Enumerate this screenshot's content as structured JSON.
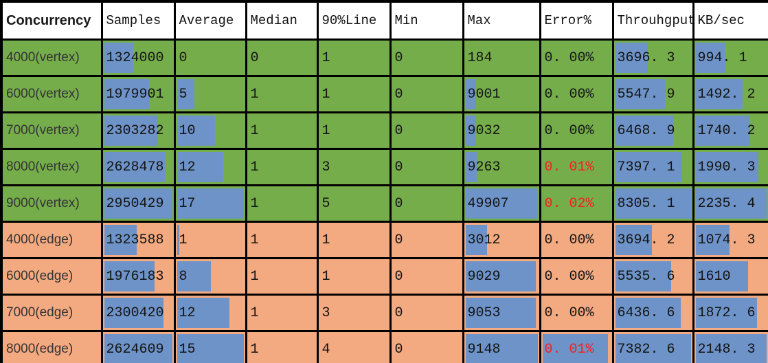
{
  "colors": {
    "green": "#76ad4b",
    "orange": "#f4aa80",
    "blue": "#6d93c8",
    "red": "#ee2222",
    "headerBg": "#ffffff",
    "border": "#000000"
  },
  "header": {
    "columns": [
      "Concurrency",
      "Samples",
      "Average",
      "Median",
      "90%Line",
      "Min",
      "Max",
      "Error%",
      "Throuhgput",
      "KB/sec"
    ]
  },
  "rows": [
    {
      "label": "4000(vertex)",
      "group": "vertex",
      "cells": [
        {
          "v": "1324000",
          "bar": 0.45
        },
        {
          "v": "0",
          "bar": 0
        },
        {
          "v": "0",
          "bar": 0
        },
        {
          "v": "1",
          "bar": 0
        },
        {
          "v": "0",
          "bar": 0
        },
        {
          "v": "184",
          "bar": 0
        },
        {
          "v": "0. 00%",
          "bar": 0,
          "red": false
        },
        {
          "v": "3696. 3",
          "bar": 0.45
        },
        {
          "v": "994. 1",
          "bar": 0.44
        }
      ]
    },
    {
      "label": "6000(vertex)",
      "group": "vertex",
      "cells": [
        {
          "v": "1979901",
          "bar": 0.67
        },
        {
          "v": "5",
          "bar": 0.29
        },
        {
          "v": "1",
          "bar": 0
        },
        {
          "v": "1",
          "bar": 0
        },
        {
          "v": "0",
          "bar": 0
        },
        {
          "v": "9001",
          "bar": 0.18
        },
        {
          "v": "0. 00%",
          "bar": 0,
          "red": false
        },
        {
          "v": "5547. 9",
          "bar": 0.67
        },
        {
          "v": "1492. 2",
          "bar": 0.67
        }
      ]
    },
    {
      "label": "7000(vertex)",
      "group": "vertex",
      "cells": [
        {
          "v": "2303282",
          "bar": 0.79
        },
        {
          "v": "10",
          "bar": 0.59
        },
        {
          "v": "1",
          "bar": 0
        },
        {
          "v": "1",
          "bar": 0
        },
        {
          "v": "0",
          "bar": 0
        },
        {
          "v": "9032",
          "bar": 0.18
        },
        {
          "v": "0. 00%",
          "bar": 0,
          "red": false
        },
        {
          "v": "6468. 9",
          "bar": 0.78
        },
        {
          "v": "1740. 2",
          "bar": 0.78
        }
      ]
    },
    {
      "label": "8000(vertex)",
      "group": "vertex",
      "cells": [
        {
          "v": "2628478",
          "bar": 0.9
        },
        {
          "v": "12",
          "bar": 0.71
        },
        {
          "v": "1",
          "bar": 0
        },
        {
          "v": "3",
          "bar": 0
        },
        {
          "v": "0",
          "bar": 0
        },
        {
          "v": "9263",
          "bar": 0.19
        },
        {
          "v": "0. 01%",
          "bar": 0,
          "red": true
        },
        {
          "v": "7397. 1",
          "bar": 0.89
        },
        {
          "v": "1990. 3",
          "bar": 0.89
        }
      ]
    },
    {
      "label": "9000(vertex)",
      "group": "vertex",
      "cells": [
        {
          "v": "2950429",
          "bar": 1
        },
        {
          "v": "17",
          "bar": 1
        },
        {
          "v": "1",
          "bar": 0
        },
        {
          "v": "5",
          "bar": 0
        },
        {
          "v": "0",
          "bar": 0
        },
        {
          "v": "49907",
          "bar": 1
        },
        {
          "v": "0. 02%",
          "bar": 0,
          "red": true
        },
        {
          "v": "8305. 1",
          "bar": 1
        },
        {
          "v": "2235. 4",
          "bar": 1
        }
      ]
    },
    {
      "label": "4000(edge)",
      "group": "edge",
      "cells": [
        {
          "v": "1323588",
          "bar": 0.5
        },
        {
          "v": "1",
          "bar": 0.07
        },
        {
          "v": "1",
          "bar": 0
        },
        {
          "v": "1",
          "bar": 0
        },
        {
          "v": "0",
          "bar": 0
        },
        {
          "v": "3012",
          "bar": 0.33
        },
        {
          "v": "0. 00%",
          "bar": 0,
          "red": false
        },
        {
          "v": "3694. 2",
          "bar": 0.5
        },
        {
          "v": "1074. 3",
          "bar": 0.5
        }
      ]
    },
    {
      "label": "6000(edge)",
      "group": "edge",
      "cells": [
        {
          "v": "1976183",
          "bar": 0.75
        },
        {
          "v": "8",
          "bar": 0.53
        },
        {
          "v": "1",
          "bar": 0
        },
        {
          "v": "1",
          "bar": 0
        },
        {
          "v": "0",
          "bar": 0
        },
        {
          "v": "9029",
          "bar": 0.98
        },
        {
          "v": "0. 00%",
          "bar": 0,
          "red": false
        },
        {
          "v": "5535. 6",
          "bar": 0.75
        },
        {
          "v": "1610",
          "bar": 0.75
        }
      ]
    },
    {
      "label": "7000(edge)",
      "group": "edge",
      "cells": [
        {
          "v": "2300420",
          "bar": 0.88
        },
        {
          "v": "12",
          "bar": 0.8
        },
        {
          "v": "1",
          "bar": 0
        },
        {
          "v": "3",
          "bar": 0
        },
        {
          "v": "0",
          "bar": 0
        },
        {
          "v": "9053",
          "bar": 0.98
        },
        {
          "v": "0. 00%",
          "bar": 0,
          "red": false
        },
        {
          "v": "6436. 6",
          "bar": 0.87
        },
        {
          "v": "1872. 6",
          "bar": 0.87
        }
      ]
    },
    {
      "label": "8000(edge)",
      "group": "edge",
      "cells": [
        {
          "v": "2624609",
          "bar": 1
        },
        {
          "v": "15",
          "bar": 1
        },
        {
          "v": "1",
          "bar": 0
        },
        {
          "v": "4",
          "bar": 0
        },
        {
          "v": "0",
          "bar": 0
        },
        {
          "v": "9148",
          "bar": 1
        },
        {
          "v": "0. 01%",
          "bar": 0.97,
          "red": true
        },
        {
          "v": "7382. 6",
          "bar": 1
        },
        {
          "v": "2148. 3",
          "bar": 1
        }
      ]
    }
  ]
}
